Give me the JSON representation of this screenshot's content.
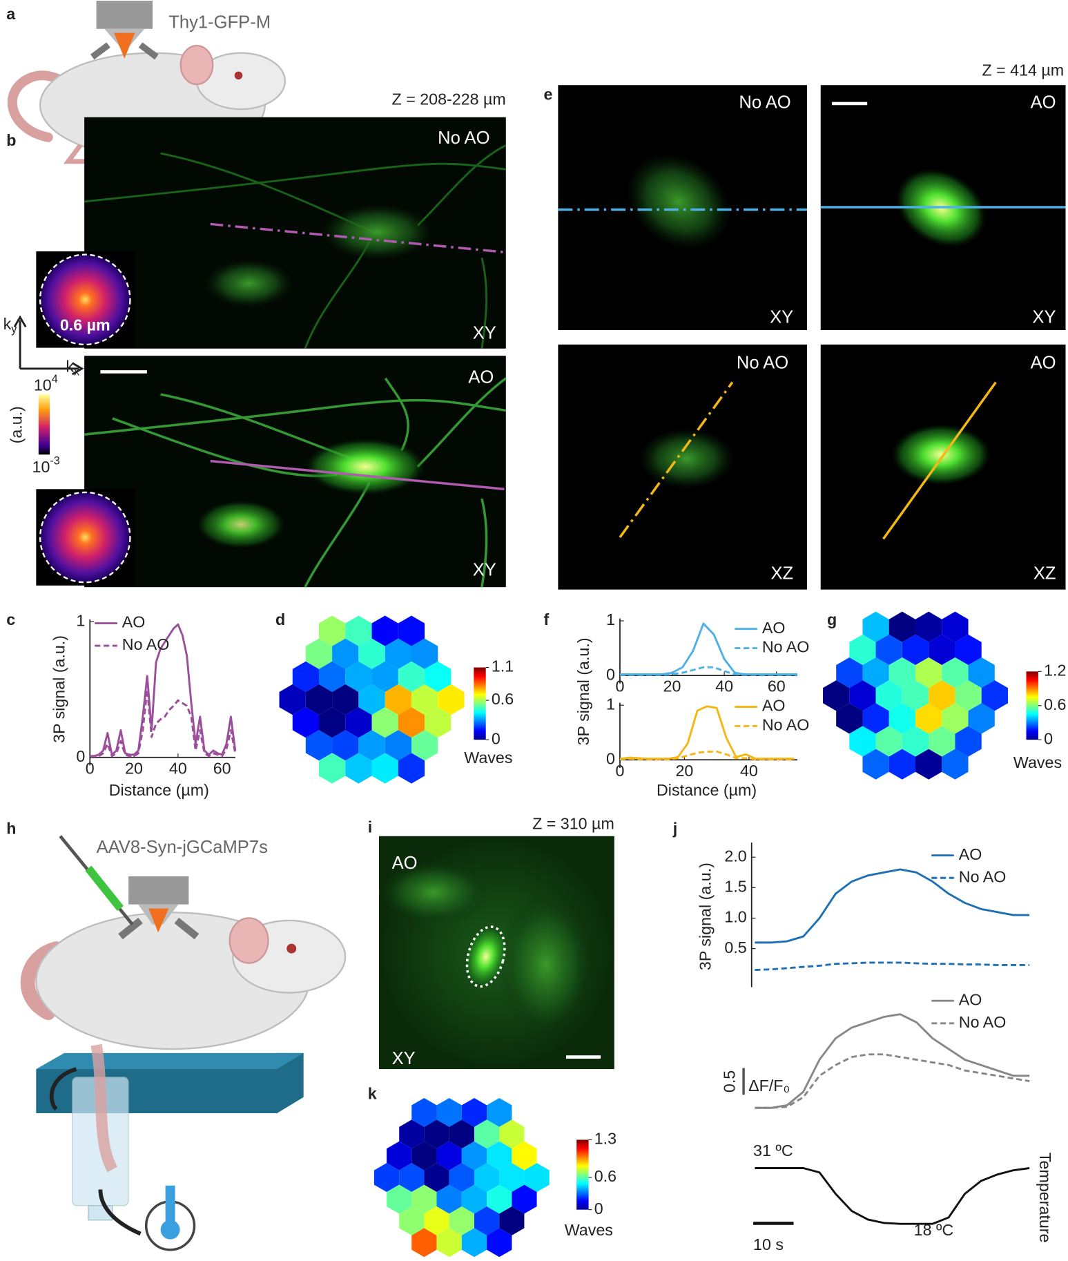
{
  "panel_letters": [
    "a",
    "b",
    "c",
    "d",
    "e",
    "f",
    "g",
    "h",
    "i",
    "j",
    "k"
  ],
  "a": {
    "strain": "Thy1-GFP-M"
  },
  "b": {
    "depth": "Z = 208-228 µm",
    "no_ao": "No AO",
    "ao": "AO",
    "plane": "XY",
    "psf_size": "0.6 µm",
    "kx": {
      "base": "k",
      "sub": "x"
    },
    "ky": {
      "base": "k",
      "sub": "y"
    },
    "colorbar_unit": "(a.u.)",
    "colorbar_max": {
      "base": "10",
      "exp": "4"
    },
    "colorbar_min": {
      "base": "10",
      "exp": "-3"
    }
  },
  "d": {
    "clim": [
      0,
      1.1
    ],
    "cticks": [
      0,
      0.6,
      1.1
    ],
    "colorbar_label": "Waves"
  },
  "e": {
    "depth": "Z = 414 µm",
    "no_ao": "No AO",
    "ao": "AO",
    "planes": [
      "XY",
      "XZ"
    ]
  },
  "g": {
    "clim": [
      0,
      1.2
    ],
    "cticks": [
      0,
      0.6,
      1.2
    ],
    "colorbar_label": "Waves"
  },
  "h": {
    "virus": "AAV8-Syn-jGCaMP7s"
  },
  "i": {
    "depth": "Z = 310 µm",
    "condition": "AO",
    "plane": "XY"
  },
  "k": {
    "clim": [
      0,
      1.3
    ],
    "cticks": [
      0,
      0.6,
      1.3
    ],
    "colorbar_label": "Waves"
  },
  "chart_data": [
    {
      "type": "line",
      "xlabel": "Distance (µm)",
      "ylabel": "3P signal (a.u.)",
      "x": [
        0,
        2,
        4,
        6,
        8,
        10,
        12,
        14,
        16,
        18,
        20,
        22,
        24,
        26,
        28,
        30,
        32,
        34,
        36,
        38,
        40,
        42,
        44,
        46,
        48,
        50,
        52,
        54,
        56,
        58,
        60,
        62,
        64,
        66
      ],
      "xlim": [
        0,
        66
      ],
      "xticks": [
        0,
        20,
        40,
        60
      ],
      "ylim": [
        0,
        1
      ],
      "yticks": [
        0,
        1
      ],
      "series": [
        {
          "name": "AO",
          "color": "#9b4f9b",
          "dash": false,
          "values": [
            0.01,
            0.01,
            0.02,
            0.05,
            0.18,
            0.02,
            0.05,
            0.2,
            0.03,
            0.02,
            0.02,
            0.05,
            0.3,
            0.6,
            0.2,
            0.7,
            0.8,
            0.85,
            0.9,
            0.95,
            0.98,
            0.9,
            0.75,
            0.4,
            0.1,
            0.3,
            0.05,
            0.02,
            0.05,
            0.03,
            0.02,
            0.1,
            0.3,
            0.05
          ]
        },
        {
          "name": "No AO",
          "color": "#9b4f9b",
          "dash": true,
          "values": [
            0.01,
            0.01,
            0.01,
            0.03,
            0.1,
            0.01,
            0.03,
            0.12,
            0.02,
            0.01,
            0.01,
            0.03,
            0.2,
            0.5,
            0.15,
            0.25,
            0.28,
            0.3,
            0.35,
            0.38,
            0.42,
            0.4,
            0.38,
            0.3,
            0.05,
            0.2,
            0.03,
            0.01,
            0.03,
            0.02,
            0.01,
            0.06,
            0.2,
            0.03
          ]
        }
      ]
    },
    {
      "type": "line",
      "x": [
        0,
        4,
        8,
        12,
        16,
        20,
        24,
        28,
        32,
        36,
        40,
        44,
        48,
        52,
        56,
        60,
        64,
        68
      ],
      "xlim": [
        0,
        68
      ],
      "xticks": [
        0,
        20,
        40,
        60
      ],
      "ylim": [
        0,
        1
      ],
      "yticks": [
        0,
        1
      ],
      "series": [
        {
          "name": "AO",
          "color": "#4fb0e6",
          "dash": false,
          "values": [
            0.02,
            0.02,
            0.02,
            0.02,
            0.02,
            0.05,
            0.15,
            0.45,
            0.95,
            0.75,
            0.3,
            0.05,
            0.02,
            0.02,
            0.02,
            0.02,
            0.02,
            0.02
          ]
        },
        {
          "name": "No AO",
          "color": "#4fb0e6",
          "dash": true,
          "values": [
            0.01,
            0.01,
            0.01,
            0.01,
            0.01,
            0.02,
            0.05,
            0.1,
            0.15,
            0.15,
            0.08,
            0.02,
            0.01,
            0.01,
            0.01,
            0.01,
            0.01,
            0.01
          ]
        }
      ]
    },
    {
      "type": "line",
      "xlabel": "Distance (µm)",
      "ylabel": "3P signal (a.u.)",
      "x": [
        0,
        3,
        6,
        9,
        12,
        15,
        18,
        21,
        24,
        27,
        30,
        33,
        36,
        39,
        42,
        45,
        48,
        51,
        54
      ],
      "xlim": [
        0,
        55
      ],
      "xticks": [
        0,
        20,
        40
      ],
      "ylim": [
        0,
        1
      ],
      "yticks": [
        0,
        1
      ],
      "series": [
        {
          "name": "AO",
          "color": "#f5b716",
          "dash": false,
          "values": [
            0.02,
            0.04,
            0.03,
            0.02,
            0.02,
            0.02,
            0.05,
            0.3,
            0.9,
            0.98,
            0.95,
            0.4,
            0.05,
            0.1,
            0.02,
            0.02,
            0.02,
            0.02,
            0.02
          ]
        },
        {
          "name": "No AO",
          "color": "#f5b716",
          "dash": true,
          "values": [
            0.01,
            0.02,
            0.01,
            0.01,
            0.01,
            0.01,
            0.03,
            0.08,
            0.13,
            0.15,
            0.15,
            0.1,
            0.03,
            0.03,
            0.01,
            0.01,
            0.01,
            0.01,
            0.01
          ]
        }
      ]
    },
    {
      "type": "line",
      "ylabel": "3P signal (a.u.)",
      "x": [
        0,
        4,
        8,
        12,
        16,
        20,
        24,
        28,
        32,
        36,
        40,
        44,
        48,
        52,
        56,
        60,
        64,
        68
      ],
      "xlim": [
        0,
        68
      ],
      "ylim": [
        0,
        2.2
      ],
      "yticks": [
        0.5,
        {
          "value": 1,
          "label": "1.0"
        },
        1.5,
        {
          "value": 2,
          "label": "2.0"
        }
      ],
      "series": [
        {
          "name": "AO",
          "color": "#1f6fb5",
          "dash": false,
          "values": [
            0.6,
            0.6,
            0.62,
            0.7,
            1.0,
            1.4,
            1.6,
            1.7,
            1.75,
            1.8,
            1.75,
            1.6,
            1.4,
            1.25,
            1.15,
            1.1,
            1.05,
            1.05
          ]
        },
        {
          "name": "No AO",
          "color": "#1f6fb5",
          "dash": true,
          "values": [
            0.15,
            0.16,
            0.18,
            0.2,
            0.22,
            0.25,
            0.26,
            0.27,
            0.27,
            0.27,
            0.26,
            0.25,
            0.25,
            0.24,
            0.24,
            0.23,
            0.23,
            0.23
          ]
        }
      ]
    },
    {
      "type": "line",
      "ylabel": "ΔF/F₀",
      "y_scalebar": 0.5,
      "x": [
        0,
        4,
        8,
        12,
        16,
        20,
        24,
        28,
        32,
        36,
        40,
        44,
        48,
        52,
        56,
        60,
        64,
        68
      ],
      "xlim": [
        0,
        68
      ],
      "ylim": [
        -0.1,
        2
      ],
      "series": [
        {
          "name": "AO",
          "color": "#888888",
          "dash": false,
          "values": [
            0,
            0,
            0.05,
            0.3,
            0.9,
            1.3,
            1.5,
            1.6,
            1.7,
            1.75,
            1.6,
            1.3,
            1.1,
            0.9,
            0.8,
            0.7,
            0.6,
            0.6
          ]
        },
        {
          "name": "No AO",
          "color": "#888888",
          "dash": true,
          "values": [
            0,
            0,
            0.02,
            0.2,
            0.6,
            0.8,
            0.95,
            1.0,
            1.0,
            0.95,
            0.9,
            0.85,
            0.8,
            0.7,
            0.65,
            0.6,
            0.55,
            0.5
          ]
        }
      ]
    },
    {
      "type": "line",
      "ylabel": "Temperature",
      "annotations": [
        "31 ºC",
        "18 ºC"
      ],
      "x_scalebar": {
        "value": 10,
        "label": "10 s"
      },
      "x": [
        0,
        4,
        8,
        12,
        16,
        20,
        24,
        28,
        32,
        36,
        40,
        44,
        48,
        52,
        56,
        60,
        64,
        68
      ],
      "xlim": [
        0,
        68
      ],
      "ylim": [
        17,
        32
      ],
      "series": [
        {
          "color": "#111111",
          "dash": false,
          "values": [
            31,
            31,
            31,
            31,
            30,
            25,
            21,
            19,
            18.2,
            18,
            18,
            18,
            19.5,
            25,
            28,
            29.5,
            30.5,
            31
          ]
        }
      ]
    }
  ]
}
